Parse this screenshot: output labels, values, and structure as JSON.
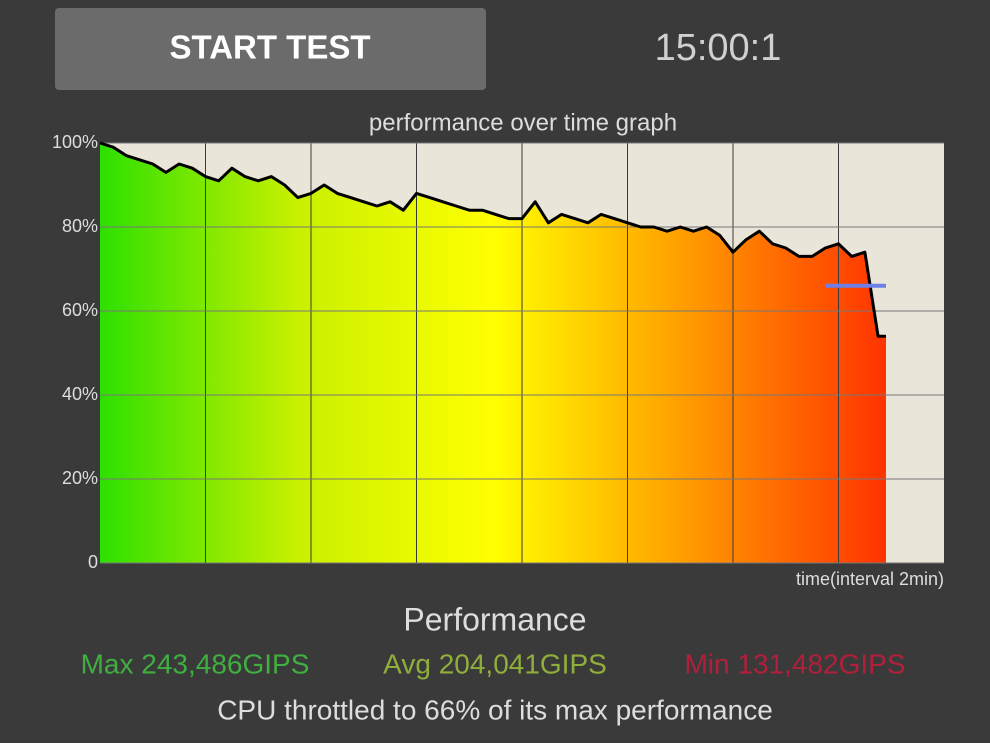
{
  "button": {
    "label": "START TEST"
  },
  "timer": "15:00:1",
  "chart_data": {
    "type": "area",
    "title": "performance over time graph",
    "x_label": "time(interval 2min)",
    "x": [
      0,
      0.25,
      0.5,
      0.75,
      1.0,
      1.25,
      1.5,
      1.75,
      2.0,
      2.25,
      2.5,
      2.75,
      3.0,
      3.25,
      3.5,
      3.75,
      4.0,
      4.25,
      4.5,
      4.75,
      5.0,
      5.25,
      5.5,
      5.75,
      6.0,
      6.25,
      6.5,
      6.75,
      7.0,
      7.25,
      7.5,
      7.75,
      8.0,
      8.25,
      8.5,
      8.75,
      9.0,
      9.25,
      9.5,
      9.75,
      10.0,
      10.25,
      10.5,
      10.75,
      11.0,
      11.25,
      11.5,
      11.75,
      12.0,
      12.25,
      12.5,
      12.75,
      13.0,
      13.25,
      13.5,
      13.75,
      14.0,
      14.25,
      14.5,
      14.75,
      14.9
    ],
    "series": [
      {
        "color": "#000000",
        "values": [
          100,
          99,
          97,
          96,
          95,
          93,
          95,
          94,
          92,
          91,
          94,
          92,
          91,
          92,
          90,
          87,
          88,
          90,
          88,
          87,
          86,
          85,
          86,
          84,
          88,
          87,
          86,
          85,
          84,
          84,
          83,
          82,
          82,
          86,
          81,
          83,
          82,
          81,
          83,
          82,
          81,
          80,
          80,
          79,
          80,
          79,
          80,
          78,
          74,
          77,
          79,
          76,
          75,
          73,
          73,
          75,
          76,
          73,
          74,
          54,
          54
        ]
      }
    ],
    "fill_gradient": [
      "#2ee000",
      "#c8f000",
      "#ffff00",
      "#ff9a00",
      "#ff3300"
    ],
    "reference_line": {
      "value": 66,
      "x": [
        13.75,
        14.9
      ],
      "color": "#6f7fe8"
    },
    "xlim": [
      0,
      16
    ],
    "xticks": [
      2,
      4,
      6,
      8,
      10,
      12,
      14
    ],
    "ylim": [
      0,
      100
    ],
    "yticks": [
      0,
      {
        "value": 20,
        "label": "20%"
      },
      {
        "value": 40,
        "label": "40%"
      },
      {
        "value": 60,
        "label": "60%"
      },
      {
        "value": 80,
        "label": "80%"
      },
      {
        "value": 100,
        "label": "100%"
      }
    ],
    "grid": true
  },
  "summary": {
    "heading": "Performance",
    "max": "Max 243,486GIPS",
    "avg": "Avg 204,041GIPS",
    "min": "Min 131,482GIPS",
    "note": "CPU throttled to 66% of its max performance"
  }
}
